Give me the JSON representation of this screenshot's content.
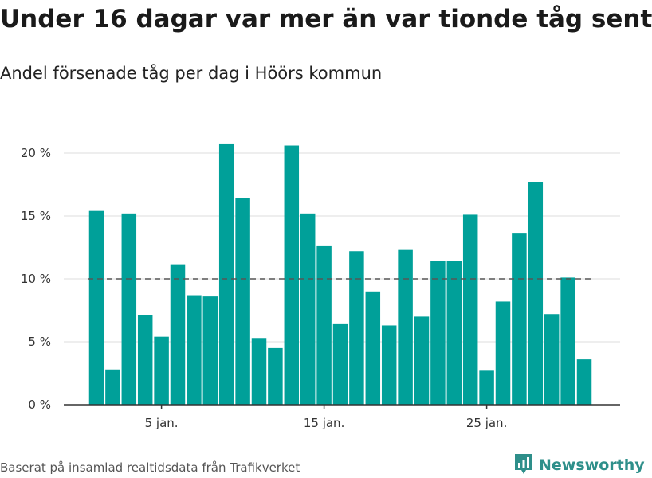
{
  "title": "Under 16 dagar var mer än var tionde tåg sent",
  "subtitle": "Andel försenade tåg per dag i Höörs kommun",
  "source": "Baserat på insamlad realtidsdata från Trafikverket",
  "brand": {
    "name": "Newsworthy",
    "icon": "newsworthy-logo-icon"
  },
  "colors": {
    "bar": "#00a099",
    "reference_line": "#555555",
    "grid": "#dddddd",
    "axis": "#333333",
    "brand": "#2e8f8a"
  },
  "chart_data": {
    "type": "bar",
    "x": [
      1,
      2,
      3,
      4,
      5,
      6,
      7,
      8,
      9,
      10,
      11,
      12,
      13,
      14,
      15,
      16,
      17,
      18,
      19,
      20,
      21,
      22,
      23,
      24,
      25,
      26,
      27,
      28,
      29,
      30,
      31
    ],
    "values": [
      15.4,
      2.8,
      15.2,
      7.1,
      5.4,
      11.1,
      8.7,
      8.6,
      20.7,
      16.4,
      5.3,
      4.5,
      20.6,
      15.2,
      12.6,
      6.4,
      12.2,
      9.0,
      6.3,
      12.3,
      7.0,
      11.4,
      11.4,
      15.1,
      2.7,
      8.2,
      13.6,
      17.7,
      7.2,
      10.1,
      3.6
    ],
    "unit": "%",
    "ylim": [
      0,
      22
    ],
    "yticks": [
      0,
      5,
      10,
      15,
      20
    ],
    "ytick_labels": [
      "0 %",
      "5 %",
      "10 %",
      "15 %",
      "20 %"
    ],
    "xticks": [
      5,
      15,
      25
    ],
    "xtick_labels": [
      "5 jan.",
      "15 jan.",
      "25 jan."
    ],
    "reference_line": 10,
    "grid": true,
    "legend": "none"
  }
}
